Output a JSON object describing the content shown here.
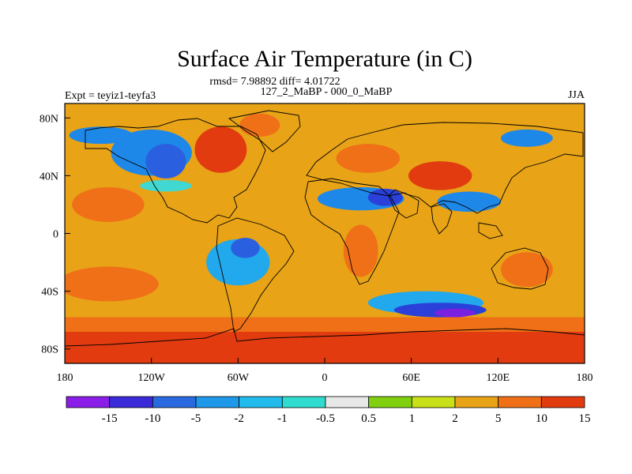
{
  "title": "Surface Air Temperature (in C)",
  "stats_line": "rmsd= 7.98892 diff= 4.01722",
  "left_label": "Expt = teyiz1-teyfa3",
  "center_label": "127_2_MaBP - 000_0_MaBP",
  "right_label": "JJA",
  "map": {
    "type": "filled-contour",
    "projection": "cylindrical-equidistant",
    "lon_range": [
      -180,
      180
    ],
    "lat_range": [
      -90,
      90
    ],
    "x_ticks": [
      {
        "lon": -180,
        "label": "180"
      },
      {
        "lon": -120,
        "label": "120W"
      },
      {
        "lon": -60,
        "label": "60W"
      },
      {
        "lon": 0,
        "label": "0"
      },
      {
        "lon": 60,
        "label": "60E"
      },
      {
        "lon": 120,
        "label": "120E"
      },
      {
        "lon": 180,
        "label": "180"
      }
    ],
    "y_ticks": [
      {
        "lat": 80,
        "label": "80N"
      },
      {
        "lat": 40,
        "label": "40N"
      },
      {
        "lat": 0,
        "label": "0"
      },
      {
        "lat": -40,
        "label": "40S"
      },
      {
        "lat": -80,
        "label": "80S"
      }
    ],
    "background_level_color": "#e8a317",
    "regions": [
      {
        "name": "antarctic-warm-band",
        "color": "#e23b10",
        "lon": [
          -180,
          180
        ],
        "lat": [
          -90,
          -68
        ]
      },
      {
        "name": "southern-ocean-orange",
        "color": "#f07018",
        "lon": [
          -180,
          180
        ],
        "lat": [
          -68,
          -58
        ]
      },
      {
        "name": "north-america-cold",
        "color": "#1e88e8",
        "cx": -120,
        "cy": 56,
        "rx": 28,
        "ry": 16
      },
      {
        "name": "north-america-core",
        "color": "#2a60e0",
        "cx": -110,
        "cy": 50,
        "rx": 14,
        "ry": 12
      },
      {
        "name": "alaska-cold",
        "color": "#1e88e8",
        "cx": -155,
        "cy": 68,
        "rx": 22,
        "ry": 6
      },
      {
        "name": "north-america-margin",
        "color": "#40d8d0",
        "cx": -110,
        "cy": 33,
        "rx": 18,
        "ry": 4
      },
      {
        "name": "canada-warm",
        "color": "#e23b10",
        "cx": -72,
        "cy": 58,
        "rx": 18,
        "ry": 16
      },
      {
        "name": "greenland-warm",
        "color": "#f07018",
        "cx": -45,
        "cy": 75,
        "rx": 14,
        "ry": 8
      },
      {
        "name": "south-america-cold",
        "color": "#22a8ec",
        "cx": -60,
        "cy": -20,
        "rx": 22,
        "ry": 16
      },
      {
        "name": "south-america-core",
        "color": "#2a60e0",
        "cx": -55,
        "cy": -10,
        "rx": 10,
        "ry": 7
      },
      {
        "name": "europe-warm",
        "color": "#f07018",
        "cx": 30,
        "cy": 52,
        "rx": 22,
        "ry": 10
      },
      {
        "name": "north-africa-cold",
        "color": "#1e88e8",
        "cx": 25,
        "cy": 24,
        "rx": 30,
        "ry": 8
      },
      {
        "name": "arabia-core",
        "color": "#2a40d8",
        "cx": 42,
        "cy": 25,
        "rx": 12,
        "ry": 6
      },
      {
        "name": "africa-warm",
        "color": "#f07018",
        "cx": 25,
        "cy": -12,
        "rx": 12,
        "ry": 18
      },
      {
        "name": "asia-warm",
        "color": "#e23b10",
        "cx": 80,
        "cy": 40,
        "rx": 22,
        "ry": 10
      },
      {
        "name": "south-asia-cold",
        "color": "#1e88e8",
        "cx": 100,
        "cy": 22,
        "rx": 22,
        "ry": 7
      },
      {
        "name": "siberia-cold",
        "color": "#1e88e8",
        "cx": 140,
        "cy": 66,
        "rx": 18,
        "ry": 6
      },
      {
        "name": "southern-ocean-cold",
        "color": "#22a8ec",
        "cx": 70,
        "cy": -48,
        "rx": 40,
        "ry": 8
      },
      {
        "name": "southern-ocean-core",
        "color": "#2a40d8",
        "cx": 80,
        "cy": -53,
        "rx": 32,
        "ry": 5
      },
      {
        "name": "southern-ocean-min",
        "color": "#7a20e0",
        "cx": 90,
        "cy": -55,
        "rx": 14,
        "ry": 3
      },
      {
        "name": "australia-warm",
        "color": "#f07018",
        "cx": 140,
        "cy": -25,
        "rx": 18,
        "ry": 12
      },
      {
        "name": "north-pacific-orange",
        "color": "#f07018",
        "cx": -150,
        "cy": 20,
        "rx": 25,
        "ry": 12
      },
      {
        "name": "south-pacific-orange",
        "color": "#f07018",
        "cx": -150,
        "cy": -35,
        "rx": 35,
        "ry": 12
      }
    ]
  },
  "colorbar": {
    "colors": [
      "#8a1ee8",
      "#3a2ad8",
      "#2a6ae0",
      "#1e98e8",
      "#22bcec",
      "#30dcd0",
      "#e8e8e8",
      "#80d010",
      "#c8e018",
      "#e8a317",
      "#f07018",
      "#e23b10"
    ],
    "labels": [
      "-15",
      "-10",
      "-5",
      "-2",
      "-1",
      "-0.5",
      "0.5",
      "1",
      "2",
      "5",
      "10",
      "15"
    ]
  }
}
